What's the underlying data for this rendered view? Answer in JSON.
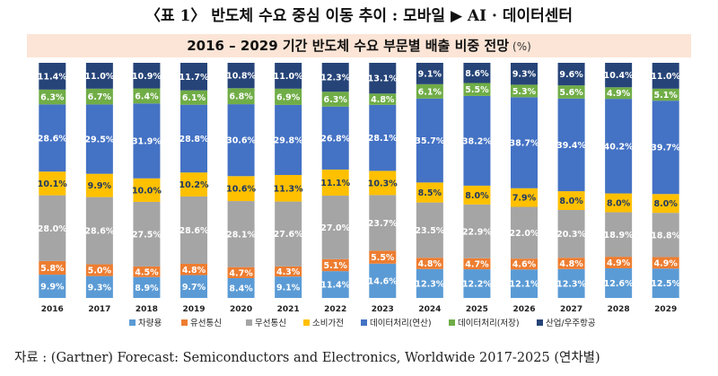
{
  "caption": "〈표 1〉 반도체 수요 중심 이동 추이 : 모바일 ▶ AI · 데이터센터",
  "source": "자료 : (Gartner) Forecast: Semiconductors and Electronics, Worldwide 2017-2025 (연차별)",
  "chart_data": {
    "type": "bar",
    "stacked": true,
    "title": "2016 – 2029 기간 반도체 수요 부문별 배출 비중 전망",
    "unit": "(%)",
    "categories": [
      "2016",
      "2017",
      "2018",
      "2019",
      "2020",
      "2021",
      "2022",
      "2023",
      "2024",
      "2025",
      "2026",
      "2027",
      "2028",
      "2029"
    ],
    "series": [
      {
        "name": "차량용",
        "color": "#5b9bd5",
        "labels": [
          "9.9%",
          "9.3%",
          "8.9%",
          "9.7%",
          "8.4%",
          "9.1%",
          "11.4%",
          "14.6%",
          "12.3%",
          "12.2%",
          "12.1%",
          "12.3%",
          "12.6%",
          "12.5%"
        ],
        "values": [
          9.9,
          9.3,
          8.9,
          9.7,
          8.4,
          9.1,
          11.4,
          14.6,
          12.3,
          12.2,
          12.1,
          12.3,
          12.6,
          12.5
        ]
      },
      {
        "name": "유선통신",
        "color": "#ed7d31",
        "labels": [
          "5.8%",
          "5.0%",
          "4.5%",
          "4.8%",
          "4.7%",
          "4.3%",
          "5.1%",
          "5.5%",
          "4.8%",
          "4.7%",
          "4.6%",
          "4.8%",
          "4.9%",
          "4.9%"
        ],
        "values": [
          5.8,
          5.0,
          4.5,
          4.8,
          4.7,
          4.3,
          5.1,
          5.5,
          4.8,
          4.7,
          4.6,
          4.8,
          4.9,
          4.9
        ]
      },
      {
        "name": "무선통신",
        "color": "#a5a5a5",
        "labels": [
          "28.0%",
          "28.6%",
          "27.5%",
          "28.6%",
          "28.1%",
          "27.6%",
          "27.0%",
          "23.7%",
          "23.5%",
          "22.9%",
          "22.0%",
          "20.3%",
          "18.9%",
          "18.8%"
        ],
        "values": [
          28.0,
          28.6,
          27.5,
          28.6,
          28.1,
          27.6,
          27.0,
          23.7,
          23.5,
          22.9,
          22.0,
          20.3,
          18.9,
          18.8
        ]
      },
      {
        "name": "소비가전",
        "color": "#ffc000",
        "labels": [
          "10.1%",
          "9.9%",
          "10.0%",
          "10.2%",
          "10.6%",
          "11.3%",
          "11.1%",
          "10.3%",
          "8.5%",
          "8.0%",
          "7.9%",
          "8.0%",
          "8.0%",
          "8.0%"
        ],
        "values": [
          10.1,
          9.9,
          10.0,
          10.2,
          10.6,
          11.3,
          11.1,
          10.3,
          8.5,
          8.0,
          7.9,
          8.0,
          8.0,
          8.0
        ]
      },
      {
        "name": "데이터처리(연산)",
        "color": "#4472c4",
        "labels": [
          "28.6%",
          "29.5%",
          "31.9%",
          "28.8%",
          "30.6%",
          "29.8%",
          "26.8%",
          "28.1%",
          "35.7%",
          "38.2%",
          "38.7%",
          "39.4%",
          "40.2%",
          "39.7%"
        ],
        "values": [
          28.6,
          29.5,
          31.9,
          28.8,
          30.6,
          29.8,
          26.8,
          28.1,
          35.7,
          38.2,
          38.7,
          39.4,
          40.2,
          39.7
        ]
      },
      {
        "name": "데이터처리(저장)",
        "color": "#70ad47",
        "labels": [
          "6.3%",
          "6.7%",
          "6.4%",
          "6.1%",
          "6.8%",
          "6.9%",
          "6.3%",
          "4.8%",
          "6.1%",
          "5.5%",
          "5.3%",
          "5.6%",
          "4.9%",
          "5.1%"
        ],
        "values": [
          6.3,
          6.7,
          6.4,
          6.1,
          6.8,
          6.9,
          6.3,
          4.8,
          6.1,
          5.5,
          5.3,
          5.6,
          4.9,
          5.1
        ]
      },
      {
        "name": "산업/우주항공",
        "color": "#264478",
        "labels": [
          "11.4%",
          "11.0%",
          "10.9%",
          "11.7%",
          "10.8%",
          "11.0%",
          "12.3%",
          "13.1%",
          "9.1%",
          "8.6%",
          "9.3%",
          "9.6%",
          "10.4%",
          "11.0%"
        ],
        "values": [
          11.4,
          11.0,
          10.9,
          11.7,
          10.8,
          11.0,
          12.3,
          13.1,
          9.1,
          8.6,
          9.3,
          9.6,
          10.4,
          11.0
        ]
      }
    ],
    "label_colors": [
      "#ffffff",
      "#ffffff",
      "#ffffff",
      "#ffffff",
      "#ffffff",
      "#ffffff",
      "#ffffff"
    ],
    "ylim": [
      0,
      100
    ],
    "legend_position": "bottom"
  }
}
